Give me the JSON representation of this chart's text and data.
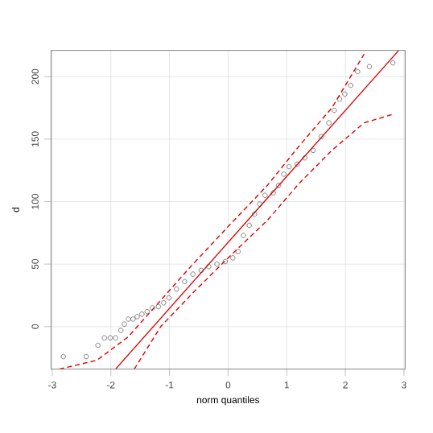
{
  "chart_data": {
    "type": "scatter",
    "xlabel": "norm quantiles",
    "ylabel": "d",
    "xlim": [
      -3.02,
      3.02
    ],
    "ylim": [
      -34,
      221
    ],
    "xticks": [
      -3,
      -2,
      -1,
      0,
      1,
      2,
      3
    ],
    "yticks": [
      0,
      50,
      100,
      150,
      200
    ],
    "grid": true,
    "series": [
      {
        "color": "#333333",
        "marker": "circle",
        "x": [
          -2.81,
          -2.42,
          -2.22,
          -2.11,
          -2.01,
          -1.92,
          -1.83,
          -1.77,
          -1.7,
          -1.62,
          -1.55,
          -1.47,
          -1.38,
          -1.29,
          -1.19,
          -1.1,
          -1.01,
          -0.88,
          -0.74,
          -0.6,
          -0.46,
          -0.33,
          -0.19,
          -0.05,
          0.08,
          0.17,
          0.26,
          0.36,
          0.45,
          0.54,
          0.63,
          0.77,
          0.86,
          0.95,
          1.04,
          1.18,
          1.31,
          1.45,
          1.59,
          1.72,
          1.81,
          1.9,
          1.99,
          2.09,
          2.21,
          2.41,
          2.81
        ],
        "values": [
          -24,
          -24,
          -15,
          -9,
          -9,
          -9,
          -3,
          2,
          6,
          6,
          8,
          10,
          12,
          15,
          16,
          19,
          23,
          30,
          36,
          42,
          45,
          48,
          50,
          52,
          55,
          60,
          73,
          81,
          90,
          98,
          105,
          107,
          113,
          122,
          128,
          130,
          135,
          141,
          152,
          163,
          173,
          182,
          186,
          193,
          204,
          208,
          211
        ]
      },
      {
        "type": "line",
        "color": "#e00000",
        "line_style": "solid",
        "x": [
          -1.92,
          2.91
        ],
        "values": [
          -34,
          221
        ]
      },
      {
        "type": "line",
        "color": "#e00000",
        "line_style": "dashed",
        "x": [
          -2.88,
          -2.24,
          -1.7,
          -1.15,
          -0.6,
          0,
          0.67,
          1.22,
          1.77,
          2.32
        ],
        "values": [
          -34,
          -27,
          -8,
          21,
          50,
          80,
          113,
          145,
          175,
          218
        ]
      },
      {
        "type": "line",
        "color": "#e00000",
        "line_style": "dashed",
        "x": [
          -1.6,
          -1.15,
          -0.6,
          0,
          0.67,
          1.22,
          1.77,
          2.32,
          2.82
        ],
        "values": [
          -34,
          0,
          27,
          55,
          85,
          115,
          141,
          163,
          170
        ]
      }
    ]
  }
}
